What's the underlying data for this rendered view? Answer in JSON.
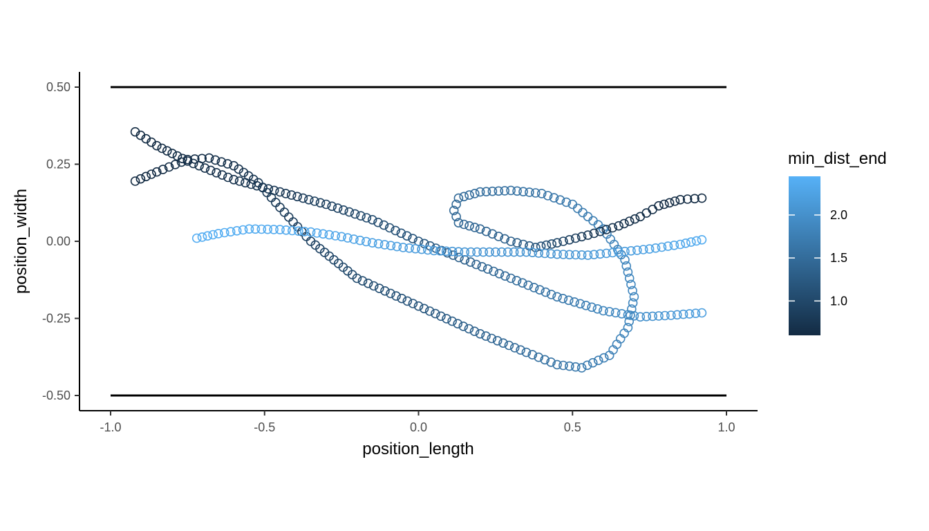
{
  "chart_data": {
    "type": "scatter",
    "xlabel": "position_length",
    "ylabel": "position_width",
    "xlim": [
      -1.0,
      1.0
    ],
    "ylim": [
      -0.5,
      0.5
    ],
    "x_ticks": [
      -1.0,
      -0.5,
      0.0,
      0.5,
      1.0
    ],
    "x_tick_labels": [
      "-1.0",
      "-0.5",
      "0.0",
      "0.5",
      "1.0"
    ],
    "y_ticks": [
      -0.5,
      -0.25,
      0.0,
      0.25,
      0.5
    ],
    "y_tick_labels": [
      "-0.50",
      "-0.25",
      "0.00",
      "0.25",
      "0.50"
    ],
    "reference_lines": [
      {
        "y": 0.5,
        "x_from": -1.0,
        "x_to": 1.0
      },
      {
        "y": -0.5,
        "x_from": -1.0,
        "x_to": 1.0
      }
    ],
    "grid": false,
    "legend": {
      "title": "min_dist_end",
      "placement": "right",
      "type": "colorbar",
      "range": [
        0.6,
        2.45
      ],
      "ticks": [
        1.0,
        1.5,
        2.0
      ],
      "tick_labels": [
        "1.0",
        "1.5",
        "2.0"
      ],
      "color_low": "#132B43",
      "color_high": "#56B1F7"
    },
    "marker": "open-circle",
    "tracks": [
      {
        "points": [
          {
            "x": -0.92,
            "y": 0.355,
            "c": 0.6
          },
          {
            "x": -0.85,
            "y": 0.31,
            "c": 0.62
          },
          {
            "x": -0.75,
            "y": 0.26,
            "c": 0.65
          },
          {
            "x": -0.6,
            "y": 0.2,
            "c": 0.7
          },
          {
            "x": -0.45,
            "y": 0.16,
            "c": 0.78
          },
          {
            "x": -0.3,
            "y": 0.12,
            "c": 0.9
          },
          {
            "x": -0.15,
            "y": 0.07,
            "c": 1.05
          },
          {
            "x": 0.0,
            "y": 0.0,
            "c": 1.2
          },
          {
            "x": 0.15,
            "y": -0.06,
            "c": 1.35
          },
          {
            "x": 0.3,
            "y": -0.12,
            "c": 1.5
          },
          {
            "x": 0.45,
            "y": -0.18,
            "c": 1.65
          },
          {
            "x": 0.6,
            "y": -0.225,
            "c": 1.85
          },
          {
            "x": 0.72,
            "y": -0.245,
            "c": 2.0
          },
          {
            "x": 0.82,
            "y": -0.24,
            "c": 2.1
          },
          {
            "x": 0.92,
            "y": -0.232,
            "c": 2.2
          }
        ]
      },
      {
        "points": [
          {
            "x": -0.92,
            "y": 0.195,
            "c": 0.6
          },
          {
            "x": -0.85,
            "y": 0.225,
            "c": 0.62
          },
          {
            "x": -0.75,
            "y": 0.265,
            "c": 0.64
          },
          {
            "x": -0.68,
            "y": 0.27,
            "c": 0.66
          },
          {
            "x": -0.6,
            "y": 0.245,
            "c": 0.7
          },
          {
            "x": -0.52,
            "y": 0.19,
            "c": 0.75
          },
          {
            "x": -0.45,
            "y": 0.11,
            "c": 0.82
          },
          {
            "x": -0.35,
            "y": 0.0,
            "c": 0.92
          },
          {
            "x": -0.2,
            "y": -0.12,
            "c": 1.05
          },
          {
            "x": 0.0,
            "y": -0.21,
            "c": 1.2
          },
          {
            "x": 0.2,
            "y": -0.3,
            "c": 1.38
          },
          {
            "x": 0.35,
            "y": -0.36,
            "c": 1.52
          },
          {
            "x": 0.45,
            "y": -0.4,
            "c": 1.62
          },
          {
            "x": 0.53,
            "y": -0.41,
            "c": 1.7
          },
          {
            "x": 0.62,
            "y": -0.37,
            "c": 1.78
          },
          {
            "x": 0.68,
            "y": -0.28,
            "c": 1.85
          },
          {
            "x": 0.7,
            "y": -0.18,
            "c": 1.88
          },
          {
            "x": 0.67,
            "y": -0.06,
            "c": 1.85
          },
          {
            "x": 0.6,
            "y": 0.04,
            "c": 1.78
          },
          {
            "x": 0.5,
            "y": 0.12,
            "c": 1.7
          },
          {
            "x": 0.4,
            "y": 0.155,
            "c": 1.62
          },
          {
            "x": 0.3,
            "y": 0.165,
            "c": 1.58
          },
          {
            "x": 0.2,
            "y": 0.16,
            "c": 1.52
          },
          {
            "x": 0.13,
            "y": 0.14,
            "c": 1.48
          },
          {
            "x": 0.115,
            "y": 0.1,
            "c": 1.45
          },
          {
            "x": 0.13,
            "y": 0.06,
            "c": 1.45
          },
          {
            "x": 0.2,
            "y": 0.04,
            "c": 1.42
          },
          {
            "x": 0.3,
            "y": 0.0,
            "c": 1.35
          },
          {
            "x": 0.38,
            "y": -0.02,
            "c": 1.2
          },
          {
            "x": 0.45,
            "y": -0.005,
            "c": 1.0
          },
          {
            "x": 0.55,
            "y": 0.02,
            "c": 0.8
          },
          {
            "x": 0.65,
            "y": 0.05,
            "c": 0.7
          },
          {
            "x": 0.72,
            "y": 0.08,
            "c": 0.65
          },
          {
            "x": 0.78,
            "y": 0.115,
            "c": 0.62
          },
          {
            "x": 0.85,
            "y": 0.135,
            "c": 0.61
          },
          {
            "x": 0.92,
            "y": 0.14,
            "c": 0.6
          }
        ]
      },
      {
        "points": [
          {
            "x": -0.72,
            "y": 0.01,
            "c": 2.4
          },
          {
            "x": -0.65,
            "y": 0.025,
            "c": 2.4
          },
          {
            "x": -0.55,
            "y": 0.04,
            "c": 2.38
          },
          {
            "x": -0.45,
            "y": 0.038,
            "c": 2.36
          },
          {
            "x": -0.35,
            "y": 0.03,
            "c": 2.34
          },
          {
            "x": -0.25,
            "y": 0.015,
            "c": 2.3
          },
          {
            "x": -0.15,
            "y": -0.005,
            "c": 2.25
          },
          {
            "x": -0.05,
            "y": -0.02,
            "c": 2.2
          },
          {
            "x": 0.05,
            "y": -0.03,
            "c": 2.15
          },
          {
            "x": 0.15,
            "y": -0.035,
            "c": 2.1
          },
          {
            "x": 0.25,
            "y": -0.035,
            "c": 2.08
          },
          {
            "x": 0.35,
            "y": -0.035,
            "c": 2.06
          },
          {
            "x": 0.45,
            "y": -0.042,
            "c": 2.08
          },
          {
            "x": 0.55,
            "y": -0.045,
            "c": 2.12
          },
          {
            "x": 0.65,
            "y": -0.035,
            "c": 2.18
          },
          {
            "x": 0.75,
            "y": -0.025,
            "c": 2.25
          },
          {
            "x": 0.85,
            "y": -0.01,
            "c": 2.32
          },
          {
            "x": 0.92,
            "y": 0.005,
            "c": 2.38
          }
        ]
      }
    ]
  }
}
